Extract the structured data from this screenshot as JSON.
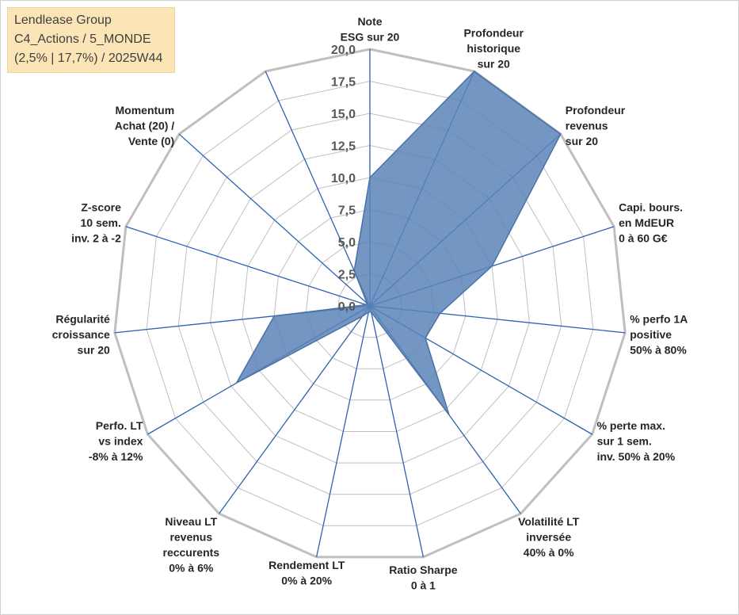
{
  "title_box": {
    "line1": "Lendlease Group",
    "line2": "C4_Actions / 5_MONDE",
    "line3": "(2,5% | 17,7%) / 2025W44"
  },
  "colors": {
    "fill": "#5b84b8",
    "stroke": "#4a72a6",
    "spoke": "#2e62b0",
    "grid": "#bfbfbf"
  },
  "chart_data": {
    "type": "radar",
    "rmax": 20,
    "tick_values": [
      0,
      2.5,
      5,
      7.5,
      10,
      12.5,
      15,
      17.5,
      20
    ],
    "tick_labels": [
      "0,0",
      "2,5",
      "5,0",
      "7,5",
      "10,0",
      "12,5",
      "15,0",
      "17,5",
      "20,0"
    ],
    "axes": [
      {
        "lines": [
          "Note",
          "ESG sur 20"
        ],
        "value": 10
      },
      {
        "lines": [
          "Profondeur",
          "historique",
          "sur 20"
        ],
        "value": 20
      },
      {
        "lines": [
          "Profondeur",
          "revenus",
          "sur 20"
        ],
        "value": 20
      },
      {
        "lines": [
          "Capi. bours.",
          "en MdEUR",
          "0 à 60 G€"
        ],
        "value": 10
      },
      {
        "lines": [
          "% perfo 1A",
          "positive",
          "50% à 80%"
        ],
        "value": 5.5
      },
      {
        "lines": [
          "% perte max.",
          "sur 1 sem.",
          "inv. 50% à 20%"
        ],
        "value": 5
      },
      {
        "lines": [
          "Volatilité LT",
          "inversée",
          "40% à 0%"
        ],
        "value": 10.5
      },
      {
        "lines": [
          "Ratio Sharpe",
          "0 à 1"
        ],
        "value": 0.5
      },
      {
        "lines": [
          "Rendement LT",
          "0% à 20%"
        ],
        "value": 0.5
      },
      {
        "lines": [
          "Niveau LT",
          "revenus",
          "reccurents",
          "0% à 6%"
        ],
        "value": 1
      },
      {
        "lines": [
          "Perfo. LT",
          "vs index",
          "-8% à 12%"
        ],
        "value": 12
      },
      {
        "lines": [
          "Régularité",
          "croissance",
          "sur 20"
        ],
        "value": 7.5
      },
      {
        "lines": [
          "Z-score",
          "10 sem.",
          "inv. 2 à -2"
        ],
        "value": 0.3
      },
      {
        "lines": [
          "Momentum",
          "Achat (20) /",
          "Vente (0)"
        ],
        "value": 0.3
      },
      {
        "lines": [],
        "value": 3
      }
    ]
  }
}
